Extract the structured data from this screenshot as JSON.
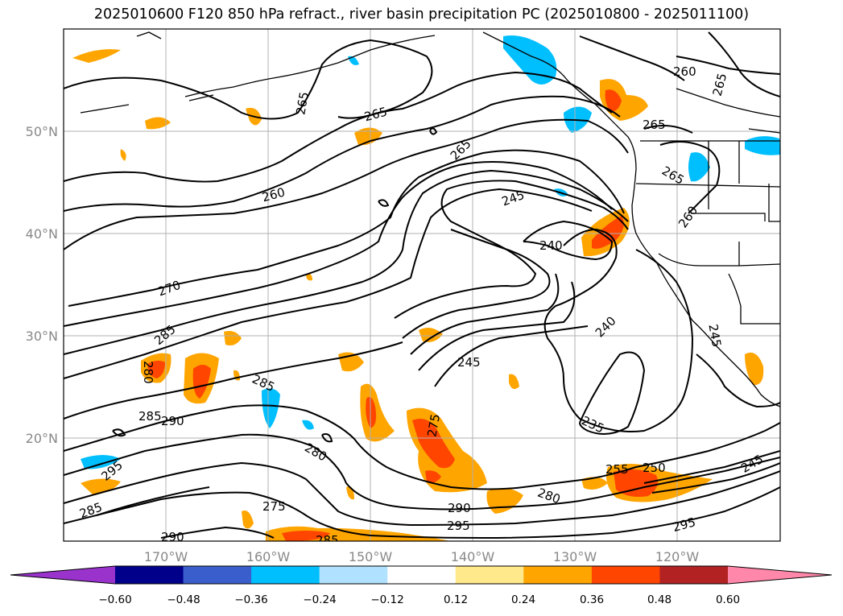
{
  "title": "2025010600 F120 850 hPa refract., river basin precipitation PC (2025010800 - 2025011100)",
  "lat_labels": [
    "50°N",
    "40°N",
    "30°N",
    "20°N"
  ],
  "lon_labels": [
    "170°W",
    "160°W",
    "150°W",
    "140°W",
    "130°W",
    "120°W"
  ],
  "colorbar": {
    "levels": [
      "−0.60",
      "−0.48",
      "−0.36",
      "−0.24",
      "−0.12",
      "0.12",
      "0.24",
      "0.36",
      "0.48",
      "0.60"
    ],
    "colors": [
      "#9933cc",
      "#00008b",
      "#3a5fcd",
      "#00bfff",
      "#b0e2ff",
      "#ffffff",
      "#ffe98a",
      "#ffa500",
      "#ff4500",
      "#b22222",
      "#ff88aa"
    ]
  },
  "contour_labels": [
    "265",
    "265",
    "265",
    "265",
    "260",
    "260",
    "265",
    "245",
    "240",
    "270",
    "285",
    "280",
    "240",
    "245",
    "235",
    "285",
    "290",
    "285",
    "295",
    "285",
    "280",
    "275",
    "275",
    "290",
    "295",
    "280",
    "255",
    "250",
    "295",
    "245",
    "290",
    "285",
    "245",
    "265",
    "260"
  ],
  "colors": {
    "contour": "#000000",
    "grid": "#b0b0b0",
    "coast": "#000000",
    "axis_label": "#888888"
  }
}
